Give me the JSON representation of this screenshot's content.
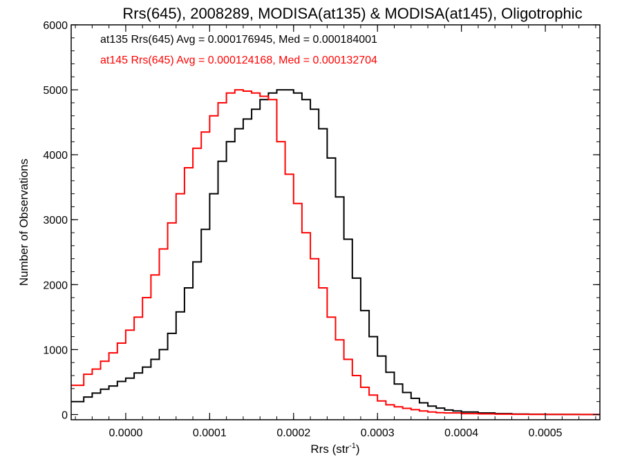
{
  "chart_data": {
    "type": "line",
    "title": "Rrs(645), 2008289, MODISA(at135) & MODISA(at145), Oligotrophic",
    "xlabel": "Rrs (str",
    "xlabel_sup": "-1",
    "xlabel_close": ")",
    "ylabel": "Number of Observations",
    "xlim": [
      -6.5e-05,
      0.000565
    ],
    "ylim": [
      -80,
      6000
    ],
    "xticks": [
      0.0,
      0.0001,
      0.0002,
      0.0003,
      0.0004,
      0.0005
    ],
    "xtick_labels": [
      "0.0000",
      "0.0001",
      "0.0002",
      "0.0003",
      "0.0004",
      "0.0005"
    ],
    "yticks": [
      0,
      1000,
      2000,
      3000,
      4000,
      5000,
      6000
    ],
    "ytick_labels": [
      "0",
      "1000",
      "2000",
      "3000",
      "4000",
      "5000",
      "6000"
    ],
    "grid": false,
    "legend_position": "top-left",
    "series": [
      {
        "name": "at135",
        "label": "at135 Rrs(645) Avg = 0.000176945, Med = 0.000184001",
        "color": "#000000",
        "x": [
          -6.5e-05,
          -5e-05,
          -4e-05,
          -3e-05,
          -2e-05,
          -1e-05,
          0.0,
          1e-05,
          2e-05,
          3e-05,
          4e-05,
          5e-05,
          6e-05,
          7e-05,
          8e-05,
          9e-05,
          0.0001,
          0.00011,
          0.00012,
          0.00013,
          0.00014,
          0.00015,
          0.00016,
          0.00017,
          0.00018,
          0.00019,
          0.0002,
          0.00021,
          0.00022,
          0.00023,
          0.00024,
          0.00025,
          0.00026,
          0.00027,
          0.00028,
          0.00029,
          0.0003,
          0.00031,
          0.00032,
          0.00033,
          0.00034,
          0.00035,
          0.00036,
          0.00037,
          0.00038,
          0.00039,
          0.0004,
          0.00042,
          0.00044,
          0.00046,
          0.00048,
          0.0005,
          0.00052,
          0.00054,
          0.00056
        ],
        "y": [
          200,
          270,
          330,
          390,
          440,
          510,
          560,
          640,
          730,
          850,
          1000,
          1250,
          1580,
          1950,
          2350,
          2850,
          3400,
          3900,
          4200,
          4400,
          4550,
          4700,
          4850,
          4950,
          5000,
          5000,
          4950,
          4850,
          4700,
          4400,
          3950,
          3350,
          2700,
          2100,
          1600,
          1200,
          900,
          650,
          470,
          340,
          250,
          180,
          130,
          100,
          70,
          55,
          40,
          25,
          15,
          8,
          5,
          3,
          2,
          1,
          1
        ]
      },
      {
        "name": "at145",
        "label": "at145 Rrs(645) Avg = 0.000124168, Med = 0.000132704",
        "color": "#ff0000",
        "x": [
          -6.5e-05,
          -5e-05,
          -4e-05,
          -3e-05,
          -2e-05,
          -1e-05,
          0.0,
          1e-05,
          2e-05,
          3e-05,
          4e-05,
          5e-05,
          6e-05,
          7e-05,
          8e-05,
          9e-05,
          0.0001,
          0.00011,
          0.00012,
          0.00013,
          0.00014,
          0.00015,
          0.00016,
          0.00017,
          0.00018,
          0.00019,
          0.0002,
          0.00021,
          0.00022,
          0.00023,
          0.00024,
          0.00025,
          0.00026,
          0.00027,
          0.00028,
          0.00029,
          0.0003,
          0.00031,
          0.00032,
          0.00033,
          0.00034,
          0.00035,
          0.00036,
          0.00037,
          0.00038,
          0.0004,
          0.00042,
          0.00044,
          0.00046,
          0.00048,
          0.0005,
          0.00052,
          0.00054,
          0.00056
        ],
        "y": [
          450,
          620,
          700,
          820,
          950,
          1100,
          1300,
          1500,
          1800,
          2150,
          2550,
          2950,
          3400,
          3800,
          4100,
          4350,
          4600,
          4800,
          4950,
          5000,
          4980,
          4950,
          4900,
          4850,
          4200,
          3700,
          3250,
          2800,
          2400,
          1950,
          1500,
          1150,
          850,
          600,
          420,
          300,
          210,
          150,
          120,
          95,
          75,
          55,
          40,
          30,
          25,
          15,
          10,
          6,
          4,
          3,
          2,
          1,
          1,
          1
        ]
      }
    ]
  }
}
